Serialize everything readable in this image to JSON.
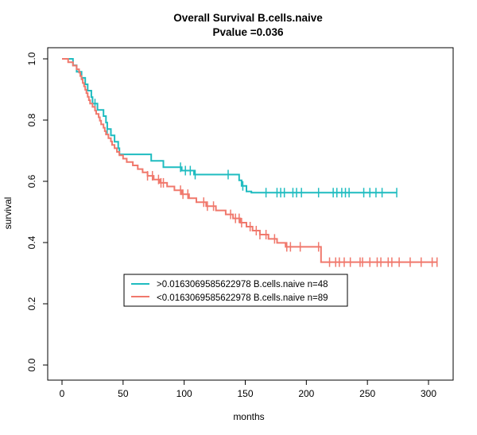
{
  "chart_data": {
    "type": "line",
    "title": "Overall Survival B.cells.naive",
    "subtitle": "Pvalue =0.036",
    "xlabel": "months",
    "ylabel": "survival",
    "xlim": [
      0,
      310
    ],
    "ylim": [
      0,
      1
    ],
    "xticks": [
      "0",
      "50",
      "100",
      "150",
      "200",
      "250",
      "300"
    ],
    "yticks": [
      "0.0",
      "0.2",
      "0.4",
      "0.6",
      "0.8",
      "1.0"
    ],
    "grid": false,
    "legend_position": "center-left",
    "series": [
      {
        "name": ">0.0163069585622978 B.cells.naive n=48",
        "color": "#1fbcc0",
        "steps": [
          [
            0,
            1.0
          ],
          [
            9,
            0.979
          ],
          [
            12,
            0.958
          ],
          [
            16,
            0.938
          ],
          [
            19,
            0.917
          ],
          [
            21,
            0.896
          ],
          [
            24,
            0.875
          ],
          [
            25,
            0.854
          ],
          [
            29,
            0.833
          ],
          [
            34,
            0.813
          ],
          [
            36,
            0.792
          ],
          [
            37,
            0.771
          ],
          [
            40,
            0.75
          ],
          [
            43,
            0.729
          ],
          [
            46,
            0.708
          ],
          [
            47,
            0.688
          ],
          [
            73,
            0.667
          ],
          [
            83,
            0.646
          ],
          [
            98,
            0.635
          ],
          [
            108,
            0.622
          ],
          [
            145,
            0.603
          ],
          [
            147,
            0.585
          ],
          [
            151,
            0.567
          ],
          [
            155,
            0.563
          ],
          [
            274,
            0.563
          ]
        ],
        "censors": [
          27,
          37,
          97,
          101,
          105,
          109,
          136,
          148,
          167,
          176,
          179,
          182,
          189,
          192,
          196,
          210,
          222,
          225,
          229,
          232,
          235,
          247,
          252,
          257,
          262,
          274
        ]
      },
      {
        "name": "<0.0163069585622978 B.cells.naive n=89",
        "color": "#f0786c",
        "steps": [
          [
            0,
            1.0
          ],
          [
            5,
            0.989
          ],
          [
            9,
            0.978
          ],
          [
            12,
            0.966
          ],
          [
            14,
            0.955
          ],
          [
            15,
            0.944
          ],
          [
            16,
            0.933
          ],
          [
            17,
            0.921
          ],
          [
            18,
            0.91
          ],
          [
            19,
            0.899
          ],
          [
            20,
            0.888
          ],
          [
            21,
            0.876
          ],
          [
            22,
            0.865
          ],
          [
            23,
            0.854
          ],
          [
            25,
            0.843
          ],
          [
            27,
            0.831
          ],
          [
            28,
            0.82
          ],
          [
            30,
            0.809
          ],
          [
            31,
            0.798
          ],
          [
            32,
            0.786
          ],
          [
            34,
            0.775
          ],
          [
            35,
            0.764
          ],
          [
            36,
            0.753
          ],
          [
            38,
            0.741
          ],
          [
            40,
            0.73
          ],
          [
            41,
            0.719
          ],
          [
            43,
            0.708
          ],
          [
            45,
            0.696
          ],
          [
            47,
            0.685
          ],
          [
            50,
            0.674
          ],
          [
            53,
            0.663
          ],
          [
            58,
            0.652
          ],
          [
            62,
            0.64
          ],
          [
            66,
            0.629
          ],
          [
            70,
            0.618
          ],
          [
            75,
            0.606
          ],
          [
            80,
            0.595
          ],
          [
            86,
            0.583
          ],
          [
            92,
            0.571
          ],
          [
            98,
            0.558
          ],
          [
            104,
            0.545
          ],
          [
            110,
            0.532
          ],
          [
            118,
            0.519
          ],
          [
            126,
            0.505
          ],
          [
            134,
            0.492
          ],
          [
            140,
            0.479
          ],
          [
            146,
            0.465
          ],
          [
            151,
            0.452
          ],
          [
            156,
            0.439
          ],
          [
            162,
            0.426
          ],
          [
            169,
            0.412
          ],
          [
            176,
            0.399
          ],
          [
            183,
            0.386
          ],
          [
            212,
            0.336
          ],
          [
            307,
            0.336
          ]
        ],
        "censors": [
          70,
          74,
          79,
          81,
          83,
          97,
          99,
          103,
          116,
          119,
          124,
          138,
          142,
          145,
          147,
          154,
          159,
          162,
          167,
          174,
          184,
          187,
          195,
          210,
          219,
          224,
          227,
          231,
          236,
          244,
          246,
          252,
          258,
          261,
          267,
          270,
          276,
          285,
          294,
          303,
          307
        ]
      }
    ]
  }
}
